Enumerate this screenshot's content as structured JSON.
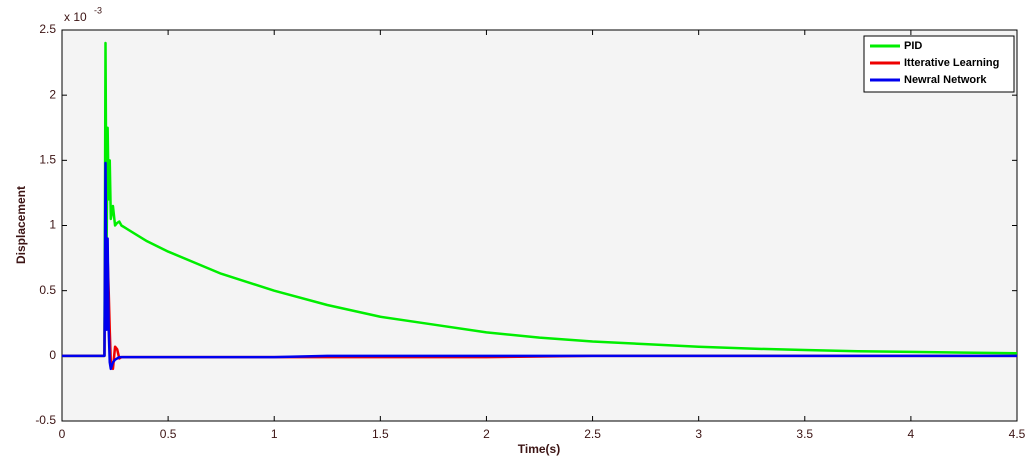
{
  "chart_data": {
    "type": "line",
    "xlabel": "Time(s)",
    "ylabel": "Displacement",
    "y_multiplier": "x 10",
    "y_multiplier_exponent": "-3",
    "x": [
      0,
      0.19,
      0.2,
      0.205,
      0.21,
      0.215,
      0.22,
      0.225,
      0.23,
      0.24,
      0.25,
      0.26,
      0.27,
      0.28,
      0.3,
      0.4,
      0.5,
      0.75,
      1,
      1.25,
      1.5,
      1.75,
      2,
      2.25,
      2.5,
      2.75,
      3,
      3.25,
      3.5,
      3.75,
      4,
      4.25,
      4.5
    ],
    "series": [
      {
        "name": "PID",
        "color": "#00ee00",
        "values": [
          0,
          0,
          0,
          2.4,
          0.8,
          1.75,
          1.2,
          1.5,
          1.05,
          1.15,
          1.0,
          1.02,
          1.03,
          1.0,
          0.98,
          0.88,
          0.8,
          0.63,
          0.5,
          0.39,
          0.3,
          0.24,
          0.18,
          0.14,
          0.11,
          0.09,
          0.07,
          0.055,
          0.045,
          0.035,
          0.03,
          0.025,
          0.02
        ]
      },
      {
        "name": "Itterative Learning",
        "color": "#ee0000",
        "values": [
          0,
          0,
          0,
          1.1,
          0.3,
          0.75,
          0.5,
          0.2,
          -0.05,
          -0.1,
          0.07,
          0.05,
          -0.02,
          -0.01,
          -0.01,
          -0.01,
          -0.01,
          -0.01,
          -0.01,
          -0.01,
          -0.01,
          -0.01,
          -0.01,
          -0.005,
          0,
          0,
          0,
          0,
          0,
          0,
          0,
          0,
          0
        ]
      },
      {
        "name": "Newral Network",
        "color": "#0000ee",
        "values": [
          0,
          0,
          0,
          1.48,
          0.2,
          0.9,
          0.2,
          -0.05,
          -0.1,
          -0.05,
          -0.03,
          -0.02,
          -0.01,
          -0.01,
          -0.01,
          -0.01,
          -0.01,
          -0.01,
          -0.01,
          0,
          0,
          0,
          0,
          0,
          0,
          0,
          0,
          0,
          0,
          0,
          0,
          0,
          0
        ]
      }
    ],
    "xlim": [
      0,
      4.5
    ],
    "xticks": [
      0,
      0.5,
      1,
      1.5,
      2,
      2.5,
      3,
      3.5,
      4,
      4.5
    ],
    "ylim": [
      -0.5,
      2.5
    ],
    "yticks": [
      -0.5,
      0,
      0.5,
      1,
      1.5,
      2,
      2.5
    ],
    "grid": false,
    "legend": "upper right"
  }
}
